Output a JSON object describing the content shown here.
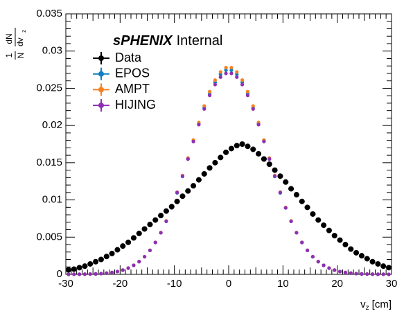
{
  "chart_data": {
    "type": "scatter",
    "header": {
      "bold": "sPHENIX",
      "normal": "Internal"
    },
    "y_label": {
      "factor_num": "1",
      "factor_den": "N",
      "deriv_num": "dN",
      "deriv_den": "dv",
      "deriv_sub": "z"
    },
    "x_label": {
      "text": "v",
      "sub": "z",
      "unit": "[cm]"
    },
    "xlim": [
      -30,
      30
    ],
    "xticks": [
      -30,
      -20,
      -10,
      0,
      10,
      20,
      30
    ],
    "ylim": [
      0,
      0.035
    ],
    "yticks": [
      0,
      0.005,
      0.01,
      0.015,
      0.02,
      0.025,
      0.03,
      0.035
    ],
    "grid": false,
    "legend": "top-left",
    "x": [
      -29.5,
      -28.5,
      -27.5,
      -26.5,
      -25.5,
      -24.5,
      -23.5,
      -22.5,
      -21.5,
      -20.5,
      -19.5,
      -18.5,
      -17.5,
      -16.5,
      -15.5,
      -14.5,
      -13.5,
      -12.5,
      -11.5,
      -10.5,
      -9.5,
      -8.5,
      -7.5,
      -6.5,
      -5.5,
      -4.5,
      -3.5,
      -2.5,
      -1.5,
      -0.5,
      0.5,
      1.5,
      2.5,
      3.5,
      4.5,
      5.5,
      6.5,
      7.5,
      8.5,
      9.5,
      10.5,
      11.5,
      12.5,
      13.5,
      14.5,
      15.5,
      16.5,
      17.5,
      18.5,
      19.5,
      20.5,
      21.5,
      22.5,
      23.5,
      24.5,
      25.5,
      26.5,
      27.5,
      28.5,
      29.5
    ],
    "series": [
      {
        "name": "Data",
        "color": "#000000",
        "values": [
          0.0006,
          0.0007,
          0.0009,
          0.0011,
          0.0014,
          0.0017,
          0.002,
          0.0024,
          0.0028,
          0.0033,
          0.0038,
          0.0043,
          0.0049,
          0.0055,
          0.0061,
          0.0067,
          0.0073,
          0.0079,
          0.0085,
          0.0091,
          0.0098,
          0.0105,
          0.0112,
          0.0119,
          0.0127,
          0.0135,
          0.0143,
          0.015,
          0.0157,
          0.0164,
          0.0169,
          0.0173,
          0.0175,
          0.0172,
          0.0168,
          0.0162,
          0.0155,
          0.0148,
          0.014,
          0.0132,
          0.0124,
          0.0115,
          0.0107,
          0.0098,
          0.009,
          0.0081,
          0.0073,
          0.0066,
          0.0059,
          0.0052,
          0.0046,
          0.004,
          0.0034,
          0.0029,
          0.0025,
          0.0021,
          0.0017,
          0.0014,
          0.0011,
          0.0009
        ]
      },
      {
        "name": "EPOS",
        "color": "#0e7fc0",
        "values": [
          0,
          1e-05,
          1e-05,
          2e-05,
          4e-05,
          6e-05,
          0.0001,
          0.00016,
          0.00025,
          0.00038,
          0.00057,
          0.00084,
          0.00121,
          0.00171,
          0.00237,
          0.00322,
          0.00428,
          0.00559,
          0.00713,
          0.00893,
          0.01095,
          0.01316,
          0.01549,
          0.01787,
          0.0202,
          0.02237,
          0.02427,
          0.0258,
          0.02688,
          0.02743,
          0.02743,
          0.02688,
          0.0258,
          0.02427,
          0.02237,
          0.0202,
          0.01787,
          0.01549,
          0.01316,
          0.01095,
          0.00893,
          0.00713,
          0.00559,
          0.00428,
          0.00322,
          0.00237,
          0.00171,
          0.00121,
          0.00084,
          0.00057,
          0.00038,
          0.00025,
          0.00016,
          0.0001,
          6e-05,
          4e-05,
          2e-05,
          1e-05,
          1e-05,
          0
        ]
      },
      {
        "name": "AMPT",
        "color": "#f58220",
        "values": [
          0,
          1e-05,
          1e-05,
          2e-05,
          4e-05,
          6e-05,
          0.0001,
          0.00016,
          0.00025,
          0.00038,
          0.00057,
          0.00084,
          0.00121,
          0.00172,
          0.00238,
          0.00323,
          0.0043,
          0.00562,
          0.00718,
          0.009,
          0.01105,
          0.01328,
          0.01563,
          0.01805,
          0.0204,
          0.02262,
          0.02455,
          0.0261,
          0.0272,
          0.02778,
          0.02778,
          0.0272,
          0.0261,
          0.02455,
          0.02262,
          0.0204,
          0.01805,
          0.01563,
          0.01328,
          0.01105,
          0.009,
          0.00718,
          0.00562,
          0.0043,
          0.00323,
          0.00238,
          0.00172,
          0.00121,
          0.00084,
          0.00057,
          0.00038,
          0.00025,
          0.00016,
          0.0001,
          6e-05,
          4e-05,
          2e-05,
          1e-05,
          1e-05,
          0
        ]
      },
      {
        "name": "HIJING",
        "color": "#8e2fb4",
        "values": [
          0,
          1e-05,
          1e-05,
          2e-05,
          4e-05,
          6e-05,
          0.0001,
          0.00016,
          0.00025,
          0.00038,
          0.00057,
          0.00084,
          0.00121,
          0.00171,
          0.00237,
          0.00322,
          0.00428,
          0.00559,
          0.00713,
          0.00893,
          0.011,
          0.0132,
          0.0155,
          0.01785,
          0.02012,
          0.02222,
          0.02405,
          0.0255,
          0.0265,
          0.027,
          0.027,
          0.0265,
          0.0255,
          0.02405,
          0.02222,
          0.02012,
          0.01785,
          0.0155,
          0.0132,
          0.011,
          0.00893,
          0.00713,
          0.00559,
          0.00428,
          0.00322,
          0.00237,
          0.00171,
          0.00121,
          0.00084,
          0.00057,
          0.00038,
          0.00025,
          0.00016,
          0.0001,
          6e-05,
          4e-05,
          2e-05,
          1e-05,
          1e-05,
          0
        ]
      }
    ]
  }
}
